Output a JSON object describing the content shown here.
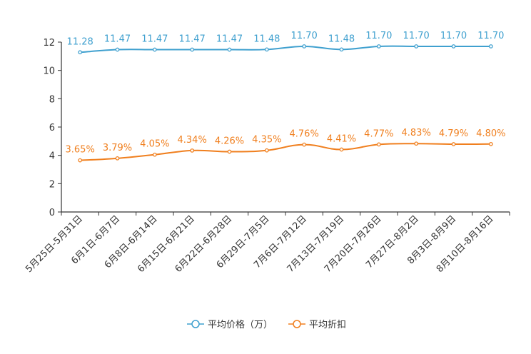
{
  "chart_data": {
    "type": "line",
    "title": "",
    "xlabel": "",
    "ylabel": "",
    "ylim": [
      0,
      12
    ],
    "yticks": [
      0,
      2,
      4,
      6,
      8,
      10,
      12
    ],
    "grid": false,
    "legend_position": "bottom-center",
    "categories": [
      "5月25日-5月31日",
      "6月1日-6月7日",
      "6月8日-6月14日",
      "6月15日-6月21日",
      "6月22日-6月28日",
      "6月29日-7月5日",
      "7月6日-7月12日",
      "7月13日-7月19日",
      "7月20日-7月26日",
      "7月27日-8月2日",
      "8月3日-8月9日",
      "8月10日-8月16日"
    ],
    "series": [
      {
        "name": "平均价格（万）",
        "color": "#3fa0cf",
        "values": [
          11.28,
          11.47,
          11.47,
          11.47,
          11.47,
          11.48,
          11.7,
          11.48,
          11.7,
          11.7,
          11.7,
          11.7
        ],
        "labels": [
          "11.28",
          "11.47",
          "11.47",
          "11.47",
          "11.47",
          "11.48",
          "11.70",
          "11.48",
          "11.70",
          "11.70",
          "11.70",
          "11.70"
        ]
      },
      {
        "name": "平均折扣",
        "color": "#f07f1e",
        "values": [
          3.65,
          3.79,
          4.05,
          4.34,
          4.26,
          4.35,
          4.76,
          4.41,
          4.77,
          4.83,
          4.79,
          4.8
        ],
        "labels": [
          "3.65%",
          "3.79%",
          "4.05%",
          "4.34%",
          "4.26%",
          "4.35%",
          "4.76%",
          "4.41%",
          "4.77%",
          "4.83%",
          "4.79%",
          "4.80%"
        ]
      }
    ]
  }
}
